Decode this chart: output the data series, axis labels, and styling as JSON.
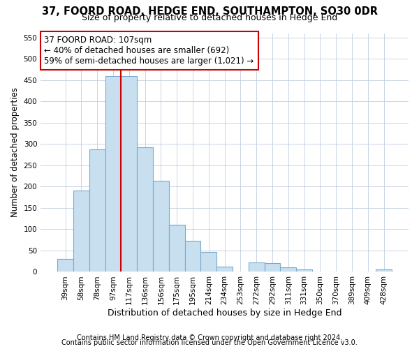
{
  "title": "37, FOORD ROAD, HEDGE END, SOUTHAMPTON, SO30 0DR",
  "subtitle": "Size of property relative to detached houses in Hedge End",
  "xlabel": "Distribution of detached houses by size in Hedge End",
  "ylabel": "Number of detached properties",
  "categories": [
    "39sqm",
    "58sqm",
    "78sqm",
    "97sqm",
    "117sqm",
    "136sqm",
    "156sqm",
    "175sqm",
    "195sqm",
    "214sqm",
    "234sqm",
    "253sqm",
    "272sqm",
    "292sqm",
    "311sqm",
    "331sqm",
    "350sqm",
    "370sqm",
    "389sqm",
    "409sqm",
    "428sqm"
  ],
  "values": [
    30,
    190,
    288,
    460,
    460,
    293,
    213,
    110,
    73,
    47,
    13,
    0,
    22,
    20,
    10,
    6,
    0,
    0,
    0,
    0,
    5
  ],
  "bar_color": "#c8dff0",
  "bar_edge_color": "#7aaaca",
  "vline_color": "#cc0000",
  "vline_pos": 3.5,
  "annotation_text_line1": "37 FOORD ROAD: 107sqm",
  "annotation_text_line2": "← 40% of detached houses are smaller (692)",
  "annotation_text_line3": "59% of semi-detached houses are larger (1,021) →",
  "annotation_box_color": "#cc0000",
  "ylim": [
    0,
    560
  ],
  "yticks": [
    0,
    50,
    100,
    150,
    200,
    250,
    300,
    350,
    400,
    450,
    500,
    550
  ],
  "footer1": "Contains HM Land Registry data © Crown copyright and database right 2024.",
  "footer2": "Contains public sector information licensed under the Open Government Licence v3.0.",
  "bg_color": "#ffffff",
  "plot_bg_color": "#ffffff",
  "grid_color": "#c0cfe0",
  "title_fontsize": 10.5,
  "subtitle_fontsize": 9,
  "xlabel_fontsize": 9,
  "ylabel_fontsize": 8.5,
  "tick_fontsize": 7.5,
  "annotation_fontsize": 8.5,
  "footer_fontsize": 7
}
